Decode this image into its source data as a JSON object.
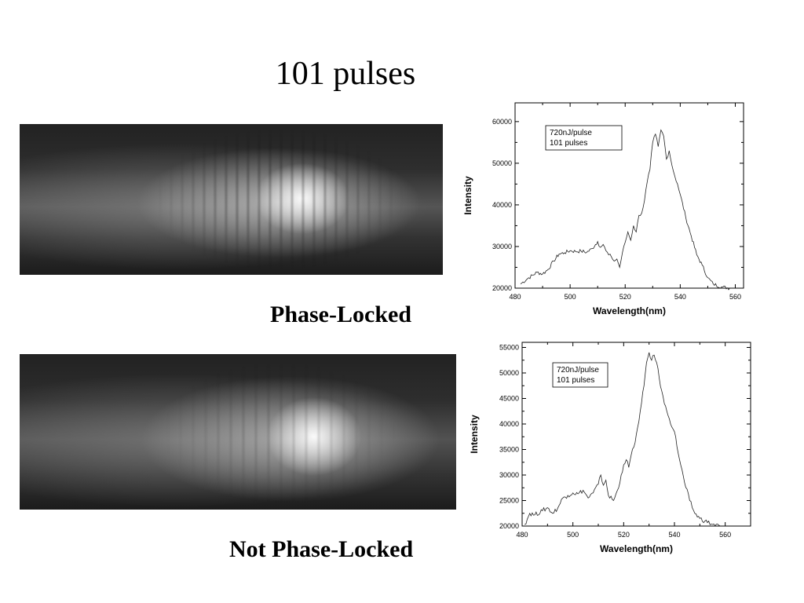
{
  "page": {
    "title": "101 pulses"
  },
  "images": [
    {
      "caption": "Phase-Locked",
      "description_icon": "spectrometer-camera-image"
    },
    {
      "caption": "Not Phase-Locked",
      "description_icon": "spectrometer-camera-image"
    }
  ],
  "chart_data": [
    {
      "type": "line",
      "title": "",
      "xlabel": "Wavelength(nm)",
      "ylabel": "Intensity",
      "xlim": [
        480,
        563
      ],
      "ylim": [
        20000,
        64500
      ],
      "xticks": [
        480,
        500,
        520,
        540,
        560
      ],
      "yticks": [
        20000,
        30000,
        40000,
        50000,
        60000
      ],
      "annotation": [
        "720nJ/pulse",
        "101 pulses"
      ],
      "grid": false,
      "series": [
        {
          "x": [
            482,
            485,
            488,
            490,
            492,
            494,
            496,
            498,
            500,
            502,
            504,
            506,
            508,
            510,
            511,
            512,
            513,
            514,
            515,
            516,
            517,
            518,
            519,
            520,
            521,
            522,
            523,
            524,
            525,
            526,
            527,
            528,
            529,
            530,
            531,
            532,
            533,
            534,
            535,
            536,
            537,
            538,
            539,
            540,
            542,
            544,
            546,
            548,
            550,
            552,
            555,
            558
          ],
          "y": [
            21000,
            22500,
            23800,
            23400,
            24500,
            26500,
            28200,
            28500,
            29000,
            28800,
            28900,
            28600,
            29500,
            31200,
            29800,
            30500,
            29000,
            28000,
            27500,
            26500,
            27000,
            25000,
            28500,
            31000,
            33500,
            31500,
            35000,
            33500,
            37500,
            38000,
            41000,
            45500,
            48500,
            55000,
            57000,
            54000,
            58000,
            56500,
            51000,
            53000,
            49500,
            47000,
            45000,
            42500,
            37000,
            32500,
            28000,
            25500,
            22500,
            21000,
            20300,
            20000
          ]
        }
      ]
    },
    {
      "type": "line",
      "title": "",
      "xlabel": "Wavelength(nm)",
      "ylabel": "Intensity",
      "xlim": [
        480,
        570
      ],
      "ylim": [
        20000,
        56000
      ],
      "xticks": [
        480,
        500,
        520,
        540,
        560
      ],
      "yticks": [
        20000,
        25000,
        30000,
        35000,
        40000,
        45000,
        50000,
        55000
      ],
      "annotation": [
        "720nJ/pulse",
        "101 pulses"
      ],
      "grid": false,
      "series": [
        {
          "x": [
            481,
            483,
            485,
            488,
            490,
            492,
            494,
            496,
            498,
            500,
            502,
            504,
            506,
            508,
            510,
            511,
            512,
            513,
            514,
            516,
            518,
            519,
            520,
            521,
            522,
            523,
            524,
            525,
            526,
            527,
            528,
            529,
            530,
            531,
            532,
            533,
            534,
            535,
            536,
            537,
            538,
            540,
            542,
            544,
            546,
            548,
            550,
            552,
            555,
            558
          ],
          "y": [
            20300,
            22500,
            22200,
            23000,
            23600,
            22500,
            23500,
            25500,
            26000,
            26500,
            26300,
            27000,
            25500,
            26500,
            28200,
            30000,
            28000,
            29000,
            26000,
            25000,
            27500,
            30000,
            32000,
            33000,
            31500,
            34000,
            35500,
            38000,
            40500,
            44000,
            47500,
            52000,
            54000,
            52500,
            53500,
            52000,
            49000,
            46500,
            44000,
            42500,
            41000,
            38500,
            33000,
            28500,
            25000,
            22500,
            21500,
            21000,
            20300,
            20000
          ]
        }
      ]
    }
  ]
}
